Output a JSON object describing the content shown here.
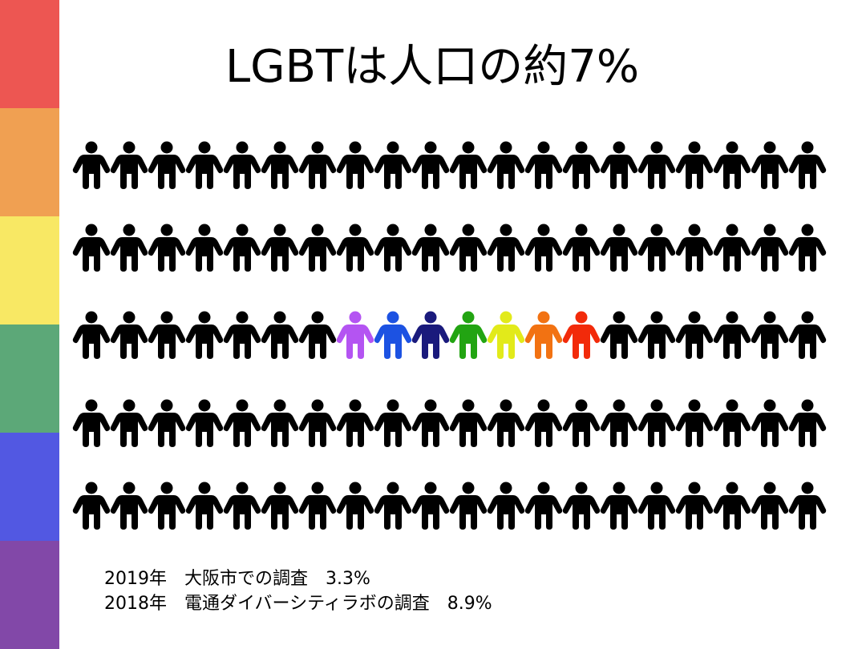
{
  "header": {
    "title": "LGBTは人口の約7%"
  },
  "notes": [
    "2019年　大阪市での調査　3.3%",
    "2018年　電通ダイバーシティラボの調査　8.9%"
  ]
}
